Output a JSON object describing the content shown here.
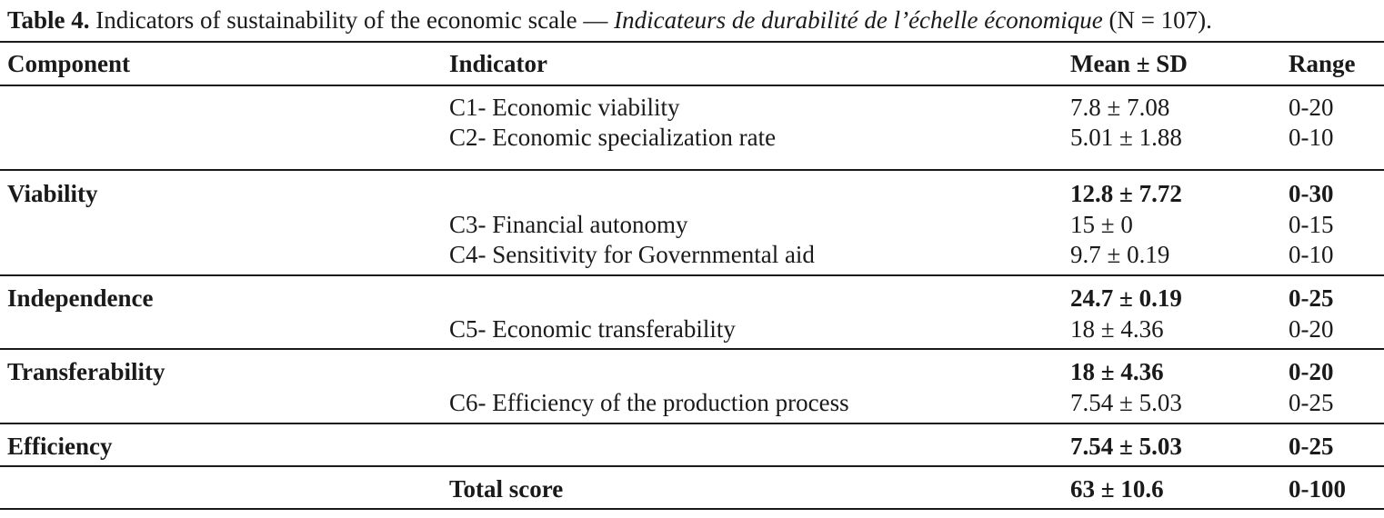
{
  "caption": {
    "label": "Table 4.",
    "text_en": " Indicators of sustainability of the economic scale — ",
    "text_fr": "Indicateurs de durabilité de l’échelle économique",
    "text_n": " (N = 107)."
  },
  "headers": {
    "component": "Component",
    "indicator": "Indicator",
    "mean_sd": "Mean ± SD",
    "range": "Range"
  },
  "rows": {
    "c1": {
      "indicator": "C1- Economic viability",
      "mean": "7.8 ± 7.08",
      "range": "0-20"
    },
    "c2": {
      "indicator": "C2- Economic specialization rate",
      "mean": "5.01 ± 1.88",
      "range": "0-10"
    },
    "viability": {
      "component": "Viability",
      "mean": "12.8 ± 7.72",
      "range": "0-30"
    },
    "c3": {
      "indicator": "C3- Financial autonomy",
      "mean": "15 ± 0",
      "range": "0-15"
    },
    "c4": {
      "indicator": "C4- Sensitivity for Governmental aid",
      "mean": "9.7 ± 0.19",
      "range": "0-10"
    },
    "independence": {
      "component": "Independence",
      "mean": "24.7 ± 0.19",
      "range": "0-25"
    },
    "c5": {
      "indicator": "C5- Economic transferability",
      "mean": "18 ± 4.36",
      "range": "0-20"
    },
    "transferability": {
      "component": "Transferability",
      "mean": "18 ± 4.36",
      "range": "0-20"
    },
    "c6": {
      "indicator": "C6- Efficiency of the production process",
      "mean": "7.54 ± 5.03",
      "range": "0-25"
    },
    "efficiency": {
      "component": "Efficiency",
      "mean": "7.54 ± 5.03",
      "range": "0-25"
    },
    "total": {
      "indicator": "Total score",
      "mean": "63 ± 10.6",
      "range": "0-100"
    }
  }
}
